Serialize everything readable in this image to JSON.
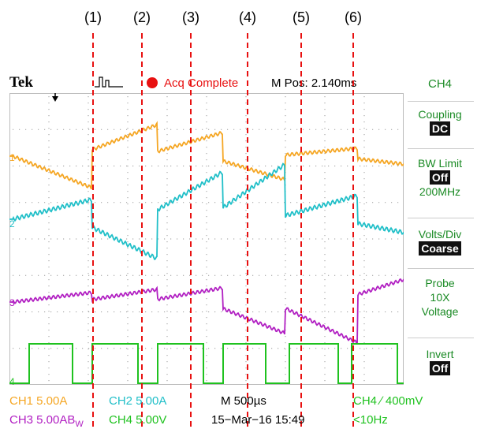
{
  "markers": [
    "(1)",
    "(2)",
    "(3)",
    "(4)",
    "(5)",
    "(6)"
  ],
  "header": {
    "brand": "Tek",
    "status": "Acq Complete",
    "position": "M Pos: 2.140ms"
  },
  "side_menu": {
    "title": "CH4",
    "coupling": {
      "label": "Coupling",
      "value": "DC"
    },
    "bw_limit": {
      "label": "BW Limit",
      "value": "Off",
      "sub": "200MHz"
    },
    "volts_div": {
      "label": "Volts/Div",
      "value": "Coarse"
    },
    "probe": {
      "label": "Probe",
      "line2": "10X",
      "line3": "Voltage"
    },
    "invert": {
      "label": "Invert",
      "value": "Off"
    }
  },
  "channel_markers": [
    "1",
    "2",
    "3",
    "4"
  ],
  "footer": {
    "ch1": "CH1  5.00A",
    "ch2": "CH2  5.00A",
    "timebase": "M 500µs",
    "trigger": "CH4 ∕ 400mV",
    "ch3": "CH3  5.00AB",
    "ch3_bw": "W",
    "ch4": "CH4  5.00V",
    "date": "15−Mar−16 15:49",
    "freq": "<10Hz"
  },
  "colors": {
    "ch1": "#f5a623",
    "ch2": "#20bfc8",
    "ch3": "#b11fc2",
    "ch4": "#1fc21f",
    "marker_line": "#e81010"
  },
  "waveform_data": {
    "ch4_gate_high_intervals_div": [
      [
        0.6,
        1.9
      ],
      [
        2.5,
        3.9
      ],
      [
        4.5,
        5.9
      ],
      [
        6.5,
        7.8
      ],
      [
        8.5,
        10.0
      ],
      [
        10.4,
        11.8
      ]
    ]
  }
}
